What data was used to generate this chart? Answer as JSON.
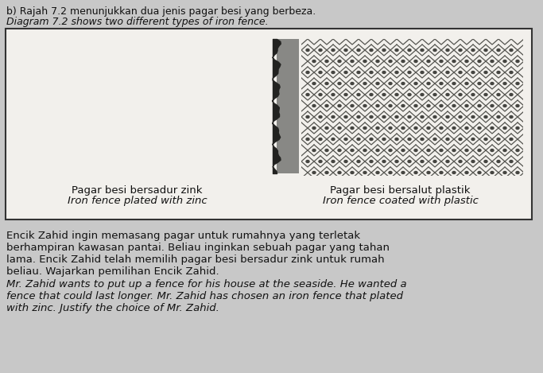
{
  "bg_color": "#c8c8c8",
  "box_bg": "#f2f0ec",
  "box_border": "#333333",
  "fence_color": "#1a1a1a",
  "mesh_color": "#555550",
  "post_color": "#444440",
  "header_line1": "b) Rajah 7.2 menunjukkan dua jenis pagar besi yang berbeza.",
  "header_line2": "Diagram 7.2 shows two different types of iron fence.",
  "left_label_line1": "Pagar besi bersadur zink",
  "left_label_line2": "Iron fence plated with zinc",
  "right_label_line1": "Pagar besi bersalut plastik",
  "right_label_line2": "Iron fence coated with plastic",
  "body_malay": [
    "Encik Zahid ingin memasang pagar untuk rumahnya yang terletak",
    "berhampiran kawasan pantai. Beliau inginkan sebuah pagar yang tahan",
    "lama. Encik Zahid telah memilih pagar besi bersadur zink untuk rumah",
    "beliau. Wajarkan pemilihan Encik Zahid."
  ],
  "body_english": [
    "Mr. Zahid wants to put up a fence for his house at the seaside. He wanted a",
    "fence that could last longer. Mr. Zahid has chosen an iron fence that plated",
    "with zinc. Justify the choice of Mr. Zahid."
  ]
}
